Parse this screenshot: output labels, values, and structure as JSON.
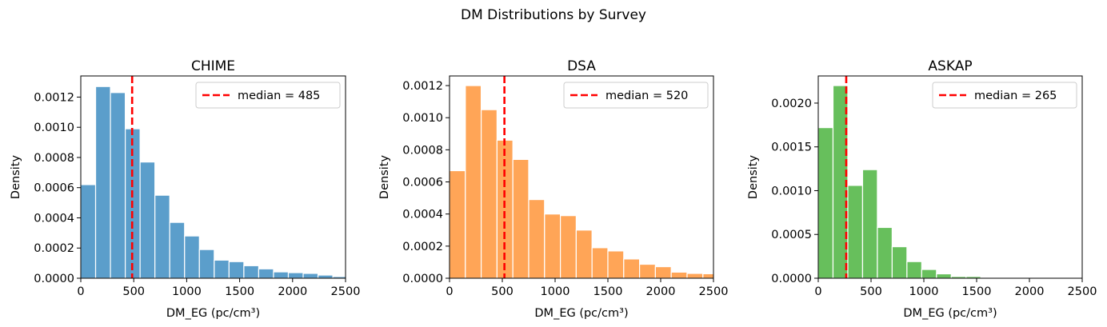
{
  "chart_data": {
    "title": "DM Distributions by Survey",
    "panels": [
      {
        "type": "bar",
        "title": "CHIME",
        "xlabel": "DM_EG (pc/cm³)",
        "ylabel": "Density",
        "xlim": [
          0,
          2500
        ],
        "ylim": [
          0,
          0.00134
        ],
        "xticks": [
          "0",
          "500",
          "1000",
          "1500",
          "2000",
          "2500"
        ],
        "xtick_values": [
          0,
          500,
          1000,
          1500,
          2000,
          2500
        ],
        "yticks": [
          "0.0000",
          "0.0002",
          "0.0004",
          "0.0006",
          "0.0008",
          "0.0010",
          "0.0012"
        ],
        "ytick_values": [
          0,
          0.0002,
          0.0004,
          0.0006,
          0.0008,
          0.001,
          0.0012
        ],
        "bin_edges": [
          0,
          140,
          280,
          420,
          560,
          700,
          840,
          980,
          1120,
          1260,
          1400,
          1540,
          1680,
          1820,
          1960,
          2100,
          2240,
          2380,
          2520
        ],
        "values": [
          0.00062,
          0.00127,
          0.00123,
          0.00099,
          0.00077,
          0.00055,
          0.00037,
          0.00028,
          0.00019,
          0.00012,
          0.00011,
          8.3e-05,
          6.2e-05,
          4.2e-05,
          3.7e-05,
          3.2e-05,
          2.1e-05,
          1.1e-05
        ],
        "color": "#5b9ecb",
        "median": 485,
        "median_label": "median = 485",
        "median_color": "#ff0000",
        "legend_position": "upper-right"
      },
      {
        "type": "bar",
        "title": "DSA",
        "xlabel": "DM_EG (pc/cm³)",
        "ylabel": "Density",
        "xlim": [
          0,
          2500
        ],
        "ylim": [
          0,
          0.00126
        ],
        "xticks": [
          "0",
          "500",
          "1000",
          "1500",
          "2000",
          "2500"
        ],
        "xtick_values": [
          0,
          500,
          1000,
          1500,
          2000,
          2500
        ],
        "yticks": [
          "0.0000",
          "0.0002",
          "0.0004",
          "0.0006",
          "0.0008",
          "0.0010",
          "0.0012"
        ],
        "ytick_values": [
          0,
          0.0002,
          0.0004,
          0.0006,
          0.0008,
          0.001,
          0.0012
        ],
        "bin_edges": [
          0,
          150,
          300,
          450,
          600,
          750,
          900,
          1050,
          1200,
          1350,
          1500,
          1650,
          1800,
          1950,
          2100,
          2250,
          2400,
          2550
        ],
        "values": [
          0.00067,
          0.0012,
          0.00105,
          0.00086,
          0.00074,
          0.00049,
          0.0004,
          0.00039,
          0.0003,
          0.00019,
          0.00017,
          0.00012,
          8.7e-05,
          7.2e-05,
          3.8e-05,
          3e-05,
          2.8e-05
        ],
        "color": "#ffa557",
        "median": 520,
        "median_label": "median = 520",
        "median_color": "#ff0000",
        "legend_position": "upper-right"
      },
      {
        "type": "bar",
        "title": "ASKAP",
        "xlabel": "DM_EG (pc/cm³)",
        "ylabel": "Density",
        "xlim": [
          0,
          2500
        ],
        "ylim": [
          0,
          0.00231
        ],
        "xticks": [
          "0",
          "500",
          "1000",
          "1500",
          "2000",
          "2500"
        ],
        "xtick_values": [
          0,
          500,
          1000,
          1500,
          2000,
          2500
        ],
        "yticks": [
          "0.0000",
          "0.0005",
          "0.0010",
          "0.0015",
          "0.0020"
        ],
        "ytick_values": [
          0,
          0.0005,
          0.001,
          0.0015,
          0.002
        ],
        "bin_edges": [
          0,
          140,
          280,
          420,
          560,
          700,
          840,
          980,
          1120,
          1260,
          1400,
          1540,
          1680
        ],
        "values": [
          0.00172,
          0.0022,
          0.00106,
          0.00124,
          0.00058,
          0.00036,
          0.00019,
          0.0001,
          5e-05,
          2e-05,
          2e-05,
          1e-05
        ],
        "color": "#67bf5c",
        "median": 265,
        "median_label": "median = 265",
        "median_color": "#ff0000",
        "legend_position": "upper-right"
      }
    ]
  }
}
